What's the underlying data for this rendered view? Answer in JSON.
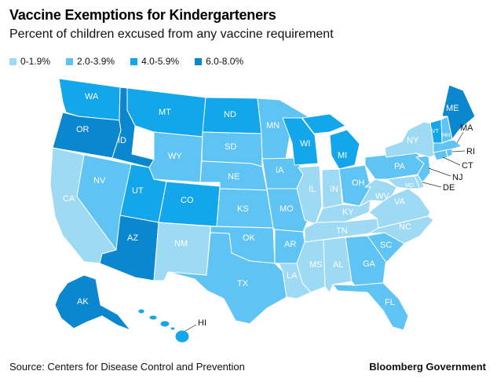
{
  "title": "Vaccine Exemptions for Kindergarteners",
  "subtitle": "Percent of children excused from any vaccine requirement",
  "legend": [
    {
      "label": "0-1.9%",
      "color": "#9fdaf5"
    },
    {
      "label": "2.0-3.9%",
      "color": "#5fc4f3"
    },
    {
      "label": "4.0-5.9%",
      "color": "#13a6ea"
    },
    {
      "label": "6.0-8.0%",
      "color": "#0b87cf"
    }
  ],
  "source": "Source: Centers for Disease Control and Prevention",
  "brand": "Bloomberg Government",
  "states": {
    "WA": {
      "label": "WA",
      "bin": 2
    },
    "OR": {
      "label": "OR",
      "bin": 3
    },
    "CA": {
      "label": "CA",
      "bin": 0
    },
    "ID": {
      "label": "ID",
      "bin": 3
    },
    "NV": {
      "label": "NV",
      "bin": 1
    },
    "UT": {
      "label": "UT",
      "bin": 2
    },
    "AZ": {
      "label": "AZ",
      "bin": 3
    },
    "MT": {
      "label": "MT",
      "bin": 2
    },
    "WY": {
      "label": "WY",
      "bin": 1
    },
    "CO": {
      "label": "CO",
      "bin": 2
    },
    "NM": {
      "label": "NM",
      "bin": 0
    },
    "ND": {
      "label": "ND",
      "bin": 2
    },
    "SD": {
      "label": "SD",
      "bin": 1
    },
    "NE": {
      "label": "NE",
      "bin": 1
    },
    "KS": {
      "label": "KS",
      "bin": 1
    },
    "OK": {
      "label": "OK",
      "bin": 1
    },
    "TX": {
      "label": "TX",
      "bin": 1
    },
    "MN": {
      "label": "MN",
      "bin": 1
    },
    "IA": {
      "label": "IA",
      "bin": 1
    },
    "MO": {
      "label": "MO",
      "bin": 1
    },
    "AR": {
      "label": "AR",
      "bin": 1
    },
    "LA": {
      "label": "LA",
      "bin": 0
    },
    "WI": {
      "label": "WI",
      "bin": 2
    },
    "IL": {
      "label": "IL",
      "bin": 0
    },
    "MI": {
      "label": "MI",
      "bin": 2
    },
    "IN": {
      "label": "IN",
      "bin": 0
    },
    "OH": {
      "label": "OH",
      "bin": 1
    },
    "KY": {
      "label": "KY",
      "bin": 0
    },
    "TN": {
      "label": "TN",
      "bin": 0
    },
    "MS": {
      "label": "MS",
      "bin": 0
    },
    "AL": {
      "label": "AL",
      "bin": 0
    },
    "GA": {
      "label": "GA",
      "bin": 1
    },
    "FL": {
      "label": "FL",
      "bin": 1
    },
    "SC": {
      "label": "SC",
      "bin": 1
    },
    "NC": {
      "label": "NC",
      "bin": 0
    },
    "VA": {
      "label": "VA",
      "bin": 0
    },
    "WV": {
      "label": "WV",
      "bin": 0
    },
    "MD": {
      "label": "MD",
      "bin": 0
    },
    "DE": {
      "label": "DE",
      "bin": 0
    },
    "NJ": {
      "label": "NJ",
      "bin": 1
    },
    "PA": {
      "label": "PA",
      "bin": 1
    },
    "NY": {
      "label": "NY",
      "bin": 0
    },
    "CT": {
      "label": "CT",
      "bin": 1
    },
    "RI": {
      "label": "RI",
      "bin": 1
    },
    "MA": {
      "label": "MA",
      "bin": 1
    },
    "VT": {
      "label": "VT",
      "bin": 2
    },
    "NH": {
      "label": "NH",
      "bin": 1
    },
    "ME": {
      "label": "ME",
      "bin": 3
    },
    "AK": {
      "label": "AK",
      "bin": 3
    },
    "HI": {
      "label": "HI",
      "bin": 2
    }
  }
}
